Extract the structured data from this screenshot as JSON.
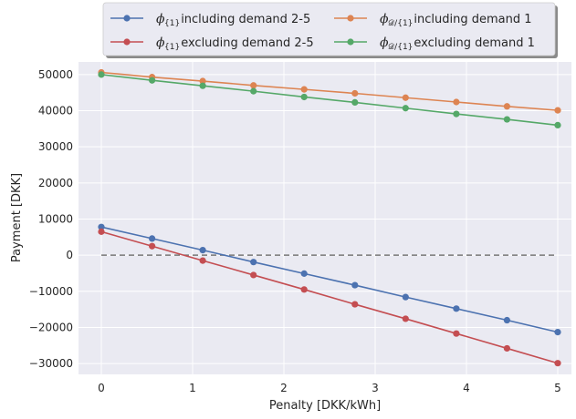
{
  "chart_data": {
    "type": "line",
    "title": "",
    "xlabel": "Penalty [DKK/kWh]",
    "ylabel": "Payment [DKK]",
    "xlim": [
      -0.25,
      5.15
    ],
    "ylim": [
      -33000,
      53500
    ],
    "x_ticks": [
      0,
      1,
      2,
      3,
      4,
      5
    ],
    "y_ticks": [
      -30000,
      -20000,
      -10000,
      0,
      10000,
      20000,
      30000,
      40000,
      50000
    ],
    "x_tick_labels": [
      "0",
      "1",
      "2",
      "3",
      "4",
      "5"
    ],
    "y_tick_labels": [
      "−30000",
      "−20000",
      "−10000",
      "0",
      "10000",
      "20000",
      "30000",
      "40000",
      "50000"
    ],
    "grid": true,
    "background": "#eaeaf2",
    "legend_placement": "top-center",
    "x": [
      0,
      0.556,
      1.111,
      1.667,
      2.222,
      2.778,
      3.333,
      3.889,
      4.444,
      5.0
    ],
    "series": [
      {
        "legend_main": "ϕ",
        "legend_sub": "{1}",
        "legend_rest": " including demand 2-5",
        "color": "#4c72b0",
        "values": [
          7800,
          4600,
          1400,
          -1900,
          -5100,
          -8300,
          -11600,
          -14800,
          -18000,
          -21300
        ]
      },
      {
        "legend_main": "ϕ",
        "legend_sub": "{1}",
        "legend_rest": " excluding demand 2-5",
        "color": "#c44e52",
        "values": [
          6500,
          2500,
          -1500,
          -5500,
          -9500,
          -13600,
          -17600,
          -21700,
          -25800,
          -29900
        ]
      },
      {
        "legend_main": "ϕ",
        "legend_sub": "𝒟/{1}",
        "legend_rest": " including demand 1",
        "color": "#dd8452",
        "values": [
          50600,
          49300,
          48200,
          47000,
          45900,
          44800,
          43600,
          42400,
          41200,
          40100
        ]
      },
      {
        "legend_main": "ϕ",
        "legend_sub": "𝒟/{1}",
        "legend_rest": " excluding demand 1",
        "color": "#55a868",
        "values": [
          50000,
          48400,
          46900,
          45400,
          43800,
          42300,
          40700,
          39100,
          37600,
          36000
        ]
      }
    ],
    "reference_line": {
      "y": 0,
      "x_range": [
        0,
        5
      ],
      "style": "dashed",
      "color": "#777777"
    }
  }
}
